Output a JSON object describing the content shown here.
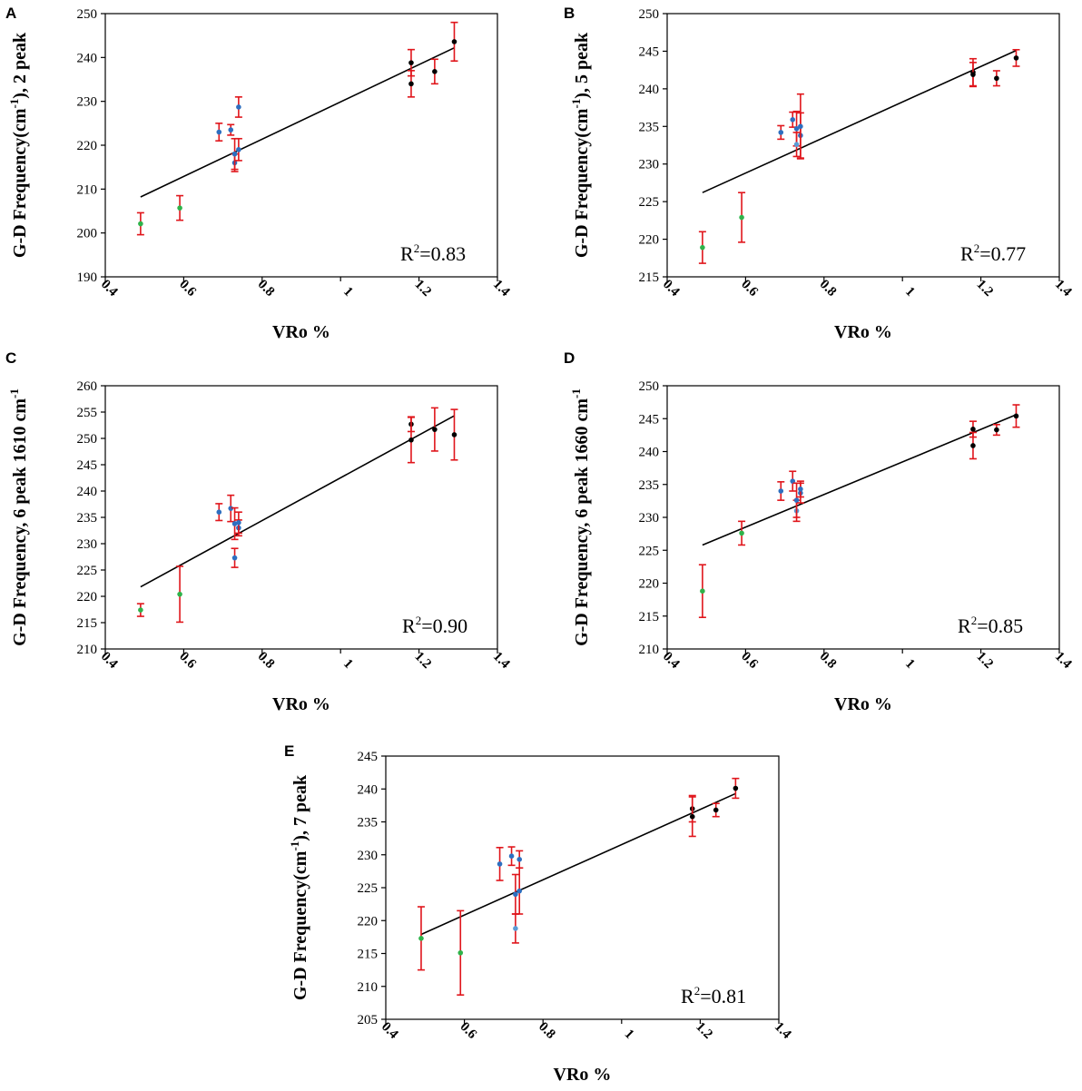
{
  "colors": {
    "fit_line": "#000000",
    "error_bar": "#e0151b"
  },
  "chart_data": [
    {
      "id": "A",
      "type": "scatter",
      "panel_label": "A",
      "ylabel": "G-D Frequency(cm-1), 2 peak",
      "ylabel_parts": {
        "before": "G-D Frequency(cm",
        "sup": "-1",
        "after": "), 2 peak"
      },
      "xlabel": "VRo %",
      "xlim": [
        0.4,
        1.4
      ],
      "ylim": [
        190,
        250
      ],
      "xticks": [
        0.4,
        0.6,
        0.8,
        1,
        1.2,
        1.4
      ],
      "xtick_labels": [
        "0.4",
        "0.6",
        "0.8",
        "1",
        "1.2",
        "1.4"
      ],
      "yticks": [
        190,
        200,
        210,
        220,
        230,
        240,
        250
      ],
      "ytick_labels": [
        "190",
        "200",
        "210",
        "220",
        "230",
        "240",
        "250"
      ],
      "r2_base": "R",
      "r2_sup": "2",
      "r2_value": "=0.83",
      "fit": {
        "x": [
          0.49,
          1.29
        ],
        "y": [
          208.2,
          242.2
        ]
      },
      "points": [
        {
          "x": 0.49,
          "y": 202.1,
          "err": 2.5,
          "color": "#2eb34a"
        },
        {
          "x": 0.59,
          "y": 205.7,
          "err": 2.8,
          "color": "#2eb34a"
        },
        {
          "x": 0.69,
          "y": 223.0,
          "err": 2.0,
          "color": "#2e6fc0"
        },
        {
          "x": 0.72,
          "y": 223.5,
          "err": 1.2,
          "color": "#2e6fc0"
        },
        {
          "x": 0.73,
          "y": 216.0,
          "err": 2.0,
          "color": "#2e6fc0"
        },
        {
          "x": 0.73,
          "y": 218.0,
          "err": 3.5,
          "color": "#2e6fc0"
        },
        {
          "x": 0.74,
          "y": 219.0,
          "err": 2.5,
          "color": "#2e6fc0"
        },
        {
          "x": 0.74,
          "y": 228.7,
          "err": 2.3,
          "color": "#2e6fc0"
        },
        {
          "x": 1.18,
          "y": 238.8,
          "err": 3.0,
          "color": "#000000"
        },
        {
          "x": 1.18,
          "y": 234.0,
          "err": 3.0,
          "color": "#000000"
        },
        {
          "x": 1.24,
          "y": 236.8,
          "err": 2.8,
          "color": "#000000"
        },
        {
          "x": 1.29,
          "y": 243.6,
          "err": 4.4,
          "color": "#000000"
        }
      ]
    },
    {
      "id": "B",
      "type": "scatter",
      "panel_label": "B",
      "ylabel": "G-D Frequency(cm-1), 5 peak",
      "ylabel_parts": {
        "before": "G-D Frequency(cm",
        "sup": "-1",
        "after": "), 5 peak"
      },
      "xlabel": "VRo %",
      "xlim": [
        0.4,
        1.4
      ],
      "ylim": [
        215,
        250
      ],
      "xticks": [
        0.4,
        0.6,
        0.8,
        1,
        1.2,
        1.4
      ],
      "xtick_labels": [
        "0.4",
        "0.6",
        "0.8",
        "1",
        "1.2",
        "1.4"
      ],
      "yticks": [
        215,
        220,
        225,
        230,
        235,
        240,
        245,
        250
      ],
      "ytick_labels": [
        "215",
        "220",
        "225",
        "230",
        "235",
        "240",
        "245",
        "250"
      ],
      "r2_base": "R",
      "r2_sup": "2",
      "r2_value": "=0.77",
      "fit": {
        "x": [
          0.49,
          1.29
        ],
        "y": [
          226.2,
          245.1
        ]
      },
      "points": [
        {
          "x": 0.49,
          "y": 218.9,
          "err": 2.1,
          "color": "#2eb34a"
        },
        {
          "x": 0.59,
          "y": 222.9,
          "err": 3.3,
          "color": "#2eb34a"
        },
        {
          "x": 0.69,
          "y": 234.2,
          "err": 0.9,
          "color": "#2e6fc0"
        },
        {
          "x": 0.72,
          "y": 235.9,
          "err": 1.0,
          "color": "#2e6fc0"
        },
        {
          "x": 0.73,
          "y": 234.7,
          "err": 2.3,
          "color": "#2e6fc0"
        },
        {
          "x": 0.73,
          "y": 232.6,
          "err": 1.6,
          "color": "#5b9bd5"
        },
        {
          "x": 0.74,
          "y": 233.8,
          "err": 3.0,
          "color": "#2e6fc0"
        },
        {
          "x": 0.74,
          "y": 235.0,
          "err": 4.3,
          "color": "#2e6fc0"
        },
        {
          "x": 1.18,
          "y": 242.2,
          "err": 1.8,
          "color": "#000000"
        },
        {
          "x": 1.18,
          "y": 241.9,
          "err": 1.6,
          "color": "#000000"
        },
        {
          "x": 1.24,
          "y": 241.4,
          "err": 1.0,
          "color": "#000000"
        },
        {
          "x": 1.29,
          "y": 244.1,
          "err": 1.1,
          "color": "#000000"
        }
      ]
    },
    {
      "id": "C",
      "type": "scatter",
      "panel_label": "C",
      "ylabel": "G-D Frequency, 6 peak 1610 cm-1",
      "ylabel_parts": {
        "before": "G-D Frequency, 6 peak 1610 cm",
        "sup": "-1",
        "after": ""
      },
      "xlabel": "VRo %",
      "xlim": [
        0.4,
        1.4
      ],
      "ylim": [
        210,
        260
      ],
      "xticks": [
        0.4,
        0.6,
        0.8,
        1,
        1.2,
        1.4
      ],
      "xtick_labels": [
        "0.4",
        "0.6",
        "0.8",
        "1",
        "1.2",
        "1.4"
      ],
      "yticks": [
        210,
        215,
        220,
        225,
        230,
        235,
        240,
        245,
        250,
        255,
        260
      ],
      "ytick_labels": [
        "210",
        "215",
        "220",
        "225",
        "230",
        "235",
        "240",
        "245",
        "250",
        "255",
        "260"
      ],
      "r2_base": "R",
      "r2_sup": "2",
      "r2_value": "=0.90",
      "fit": {
        "x": [
          0.49,
          1.29
        ],
        "y": [
          221.8,
          254.3
        ]
      },
      "points": [
        {
          "x": 0.49,
          "y": 217.4,
          "err": 1.2,
          "color": "#2eb34a"
        },
        {
          "x": 0.59,
          "y": 220.4,
          "err": 5.3,
          "color": "#2eb34a"
        },
        {
          "x": 0.69,
          "y": 236.0,
          "err": 1.6,
          "color": "#2e6fc0"
        },
        {
          "x": 0.72,
          "y": 236.7,
          "err": 2.5,
          "color": "#2e6fc0"
        },
        {
          "x": 0.73,
          "y": 227.3,
          "err": 1.8,
          "color": "#2e6fc0"
        },
        {
          "x": 0.73,
          "y": 233.8,
          "err": 3.0,
          "color": "#2e6fc0"
        },
        {
          "x": 0.74,
          "y": 233.0,
          "err": 1.5,
          "color": "#2e6fc0"
        },
        {
          "x": 0.74,
          "y": 234.0,
          "err": 2.0,
          "color": "#2e6fc0"
        },
        {
          "x": 1.18,
          "y": 252.7,
          "err": 1.4,
          "color": "#000000"
        },
        {
          "x": 1.18,
          "y": 249.7,
          "err": 4.3,
          "color": "#000000"
        },
        {
          "x": 1.24,
          "y": 251.7,
          "err": 4.1,
          "color": "#000000"
        },
        {
          "x": 1.29,
          "y": 250.7,
          "err": 4.8,
          "color": "#000000"
        }
      ]
    },
    {
      "id": "D",
      "type": "scatter",
      "panel_label": "D",
      "ylabel": "G-D Frequency, 6 peak 1660 cm-1",
      "ylabel_parts": {
        "before": "G-D Frequency, 6 peak 1660 cm",
        "sup": "-1",
        "after": ""
      },
      "xlabel": "VRo %",
      "xlim": [
        0.4,
        1.4
      ],
      "ylim": [
        210,
        250
      ],
      "xticks": [
        0.4,
        0.6,
        0.8,
        1,
        1.2,
        1.4
      ],
      "xtick_labels": [
        "0.4",
        "0.6",
        "0.8",
        "1",
        "1.2",
        "1.4"
      ],
      "yticks": [
        210,
        215,
        220,
        225,
        230,
        235,
        240,
        245,
        250
      ],
      "ytick_labels": [
        "210",
        "215",
        "220",
        "225",
        "230",
        "235",
        "240",
        "245",
        "250"
      ],
      "r2_base": "R",
      "r2_sup": "2",
      "r2_value": "=0.85",
      "fit": {
        "x": [
          0.49,
          1.29
        ],
        "y": [
          225.8,
          245.6
        ]
      },
      "points": [
        {
          "x": 0.49,
          "y": 218.8,
          "err": 4.0,
          "color": "#2eb34a"
        },
        {
          "x": 0.59,
          "y": 227.6,
          "err": 1.8,
          "color": "#2eb34a"
        },
        {
          "x": 0.69,
          "y": 234.0,
          "err": 1.4,
          "color": "#2e6fc0"
        },
        {
          "x": 0.72,
          "y": 235.5,
          "err": 1.5,
          "color": "#2e6fc0"
        },
        {
          "x": 0.73,
          "y": 231.0,
          "err": 1.6,
          "color": "#5b9bd5"
        },
        {
          "x": 0.73,
          "y": 232.6,
          "err": 2.6,
          "color": "#2e6fc0"
        },
        {
          "x": 0.74,
          "y": 233.7,
          "err": 1.5,
          "color": "#2e6fc0"
        },
        {
          "x": 0.74,
          "y": 234.3,
          "err": 1.2,
          "color": "#2e6fc0"
        },
        {
          "x": 1.18,
          "y": 243.4,
          "err": 1.2,
          "color": "#000000"
        },
        {
          "x": 1.18,
          "y": 240.9,
          "err": 2.0,
          "color": "#000000"
        },
        {
          "x": 1.24,
          "y": 243.3,
          "err": 0.8,
          "color": "#000000"
        },
        {
          "x": 1.29,
          "y": 245.4,
          "err": 1.7,
          "color": "#000000"
        }
      ]
    },
    {
      "id": "E",
      "type": "scatter",
      "panel_label": "E",
      "ylabel": "G-D Frequency(cm-1), 7 peak",
      "ylabel_parts": {
        "before": "G-D Frequency(cm",
        "sup": "-1",
        "after": "), 7 peak"
      },
      "xlabel": "VRo %",
      "xlim": [
        0.4,
        1.4
      ],
      "ylim": [
        205,
        245
      ],
      "xticks": [
        0.4,
        0.6,
        0.8,
        1,
        1.2,
        1.4
      ],
      "xtick_labels": [
        "0.4",
        "0.6",
        "0.8",
        "1",
        "1.2",
        "1.4"
      ],
      "yticks": [
        205,
        210,
        215,
        220,
        225,
        230,
        235,
        240,
        245
      ],
      "ytick_labels": [
        "205",
        "210",
        "215",
        "220",
        "225",
        "230",
        "235",
        "240",
        "245"
      ],
      "r2_base": "R",
      "r2_sup": "2",
      "r2_value": "=0.81",
      "fit": {
        "x": [
          0.49,
          1.29
        ],
        "y": [
          217.9,
          239.3
        ]
      },
      "points": [
        {
          "x": 0.49,
          "y": 217.3,
          "err": 4.8,
          "color": "#2eb34a"
        },
        {
          "x": 0.59,
          "y": 215.1,
          "err": 6.4,
          "color": "#2eb34a"
        },
        {
          "x": 0.69,
          "y": 228.6,
          "err": 2.5,
          "color": "#2e6fc0"
        },
        {
          "x": 0.72,
          "y": 229.8,
          "err": 1.4,
          "color": "#2e6fc0"
        },
        {
          "x": 0.73,
          "y": 218.8,
          "err": 2.2,
          "color": "#5b9bd5"
        },
        {
          "x": 0.73,
          "y": 224.0,
          "err": 3.0,
          "color": "#2e6fc0"
        },
        {
          "x": 0.74,
          "y": 224.5,
          "err": 3.5,
          "color": "#2e6fc0"
        },
        {
          "x": 0.74,
          "y": 229.3,
          "err": 1.3,
          "color": "#2e6fc0"
        },
        {
          "x": 1.18,
          "y": 237.0,
          "err": 2.0,
          "color": "#000000"
        },
        {
          "x": 1.18,
          "y": 235.8,
          "err": 3.0,
          "color": "#000000"
        },
        {
          "x": 1.24,
          "y": 236.8,
          "err": 1.0,
          "color": "#000000"
        },
        {
          "x": 1.29,
          "y": 240.1,
          "err": 1.5,
          "color": "#000000"
        }
      ]
    }
  ]
}
